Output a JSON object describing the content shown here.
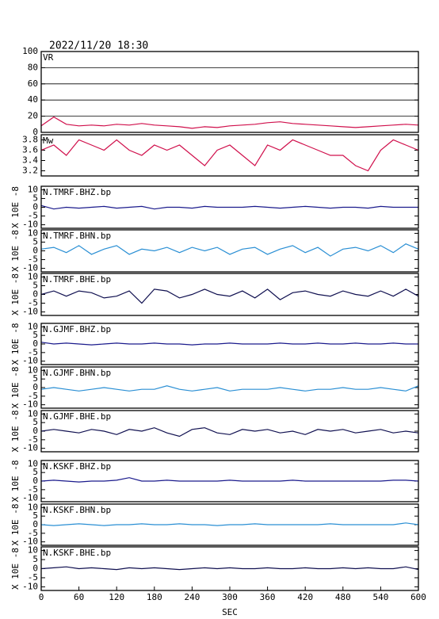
{
  "chart_data": [
    {
      "type": "line",
      "title": "2022/11/20 18:30",
      "label": "VR",
      "color": "#d0104c",
      "grid": true,
      "x": [
        0,
        20,
        40,
        60,
        80,
        100,
        120,
        140,
        160,
        180,
        200,
        220,
        240,
        260,
        280,
        300,
        320,
        340,
        360,
        380,
        400,
        420,
        440,
        460,
        480,
        500,
        520,
        540,
        560,
        580,
        600
      ],
      "values": [
        8,
        19,
        10,
        8,
        9,
        8,
        10,
        9,
        11,
        9,
        8,
        7,
        5,
        7,
        6,
        8,
        9,
        10,
        12,
        13,
        11,
        10,
        9,
        8,
        7,
        6,
        7,
        8,
        9,
        10,
        9
      ],
      "xlim": [
        0,
        600
      ],
      "ylim": [
        0,
        100
      ],
      "yticks": [
        0,
        20,
        40,
        60,
        80,
        100
      ]
    },
    {
      "type": "line",
      "label": "Mw",
      "color": "#d0104c",
      "x": [
        0,
        20,
        40,
        60,
        80,
        100,
        120,
        140,
        160,
        180,
        200,
        220,
        240,
        260,
        280,
        300,
        320,
        340,
        360,
        380,
        400,
        420,
        440,
        460,
        480,
        500,
        520,
        540,
        560,
        580,
        600
      ],
      "values": [
        3.6,
        3.7,
        3.5,
        3.8,
        3.7,
        3.6,
        3.8,
        3.6,
        3.5,
        3.7,
        3.6,
        3.7,
        3.5,
        3.3,
        3.6,
        3.7,
        3.5,
        3.3,
        3.7,
        3.6,
        3.8,
        3.7,
        3.6,
        3.5,
        3.5,
        3.3,
        3.2,
        3.6,
        3.8,
        3.7,
        3.6
      ],
      "xlim": [
        0,
        600
      ],
      "ylim": [
        3.1,
        3.9
      ],
      "yticks": [
        3.2,
        3.4,
        3.6,
        3.8
      ]
    },
    {
      "type": "line",
      "label": "N.TMRF.BHZ.bp",
      "ylabel": "X 10E -8",
      "color": "#1a1a8c",
      "x": [
        0,
        20,
        40,
        60,
        80,
        100,
        120,
        140,
        160,
        180,
        200,
        220,
        240,
        260,
        280,
        300,
        320,
        340,
        360,
        380,
        400,
        420,
        440,
        460,
        480,
        500,
        520,
        540,
        560,
        580,
        600
      ],
      "values": [
        1,
        -1,
        0,
        -0.5,
        0,
        0.5,
        -0.5,
        0,
        0.5,
        -1,
        0,
        0,
        -0.5,
        0.5,
        0,
        0,
        0,
        0.5,
        0,
        -0.5,
        0,
        0.5,
        0,
        -0.5,
        0,
        0,
        -0.5,
        0.5,
        0,
        0,
        0
      ],
      "xlim": [
        0,
        600
      ],
      "ylim": [
        -12,
        12
      ],
      "yticks": [
        -10,
        -5,
        0,
        5,
        10
      ]
    },
    {
      "type": "line",
      "label": "N.TMRF.BHN.bp",
      "ylabel": "X 10E -8",
      "color": "#2a8fd4",
      "x": [
        0,
        20,
        40,
        60,
        80,
        100,
        120,
        140,
        160,
        180,
        200,
        220,
        240,
        260,
        280,
        300,
        320,
        340,
        360,
        380,
        400,
        420,
        440,
        460,
        480,
        500,
        520,
        540,
        560,
        580,
        600
      ],
      "values": [
        1,
        2,
        -1,
        3,
        -2,
        1,
        3,
        -2,
        1,
        0,
        2,
        -1,
        2,
        0,
        2,
        -2,
        1,
        2,
        -2,
        1,
        3,
        -1,
        2,
        -3,
        1,
        2,
        0,
        3,
        -1,
        4,
        1
      ],
      "xlim": [
        0,
        600
      ],
      "ylim": [
        -12,
        12
      ],
      "yticks": [
        -10,
        -5,
        0,
        5,
        10
      ]
    },
    {
      "type": "line",
      "label": "N.TMRF.BHE.bp",
      "ylabel": "X 10E -8",
      "color": "#101050",
      "x": [
        0,
        20,
        40,
        60,
        80,
        100,
        120,
        140,
        160,
        180,
        200,
        220,
        240,
        260,
        280,
        300,
        320,
        340,
        360,
        380,
        400,
        420,
        440,
        460,
        480,
        500,
        520,
        540,
        560,
        580,
        600
      ],
      "values": [
        0,
        2,
        -1,
        2,
        1,
        -2,
        -1,
        2,
        -5,
        3,
        2,
        -2,
        0,
        3,
        0,
        -1,
        2,
        -2,
        3,
        -3,
        1,
        2,
        0,
        -1,
        2,
        0,
        -1,
        2,
        -1,
        3,
        -1
      ],
      "xlim": [
        0,
        600
      ],
      "ylim": [
        -12,
        12
      ],
      "yticks": [
        -10,
        -5,
        0,
        5,
        10
      ]
    },
    {
      "type": "line",
      "label": "N.GJMF.BHZ.bp",
      "ylabel": "X 10E -8",
      "color": "#1a1a8c",
      "x": [
        0,
        20,
        40,
        60,
        80,
        100,
        120,
        140,
        160,
        180,
        200,
        220,
        240,
        260,
        280,
        300,
        320,
        340,
        360,
        380,
        400,
        420,
        440,
        460,
        480,
        500,
        520,
        540,
        560,
        580,
        600
      ],
      "values": [
        1,
        0,
        0.5,
        0,
        -0.5,
        0,
        0.5,
        0,
        0,
        0.5,
        0,
        0,
        -0.5,
        0,
        0,
        0.5,
        0,
        0,
        0,
        0.5,
        0,
        0,
        0.5,
        0,
        0,
        0.5,
        0,
        0,
        0.5,
        0,
        0
      ],
      "xlim": [
        0,
        600
      ],
      "ylim": [
        -12,
        12
      ],
      "yticks": [
        -10,
        -5,
        0,
        5,
        10
      ]
    },
    {
      "type": "line",
      "label": "N.GJMF.BHN.bp",
      "ylabel": "X 10E -8",
      "color": "#2a8fd4",
      "x": [
        0,
        20,
        40,
        60,
        80,
        100,
        120,
        140,
        160,
        180,
        200,
        220,
        240,
        260,
        280,
        300,
        320,
        340,
        360,
        380,
        400,
        420,
        440,
        460,
        480,
        500,
        520,
        540,
        560,
        580,
        600
      ],
      "values": [
        -1,
        0,
        -1,
        -2,
        -1,
        0,
        -1,
        -2,
        -1,
        -1,
        1,
        -1,
        -2,
        -1,
        0,
        -2,
        -1,
        -1,
        -1,
        0,
        -1,
        -2,
        -1,
        -1,
        0,
        -1,
        -1,
        0,
        -1,
        -2,
        1
      ],
      "xlim": [
        0,
        600
      ],
      "ylim": [
        -12,
        12
      ],
      "yticks": [
        -10,
        -5,
        0,
        5,
        10
      ]
    },
    {
      "type": "line",
      "label": "N.GJMF.BHE.bp",
      "ylabel": "X 10E -8",
      "color": "#101050",
      "x": [
        0,
        20,
        40,
        60,
        80,
        100,
        120,
        140,
        160,
        180,
        200,
        220,
        240,
        260,
        280,
        300,
        320,
        340,
        360,
        380,
        400,
        420,
        440,
        460,
        480,
        500,
        520,
        540,
        560,
        580,
        600
      ],
      "values": [
        0,
        1,
        0,
        -1,
        1,
        0,
        -2,
        1,
        0,
        2,
        -1,
        -3,
        1,
        2,
        -1,
        -2,
        1,
        0,
        1,
        -1,
        0,
        -2,
        1,
        0,
        1,
        -1,
        0,
        1,
        -1,
        0,
        -1
      ],
      "xlim": [
        0,
        600
      ],
      "ylim": [
        -12,
        12
      ],
      "yticks": [
        -10,
        -5,
        0,
        5,
        10
      ]
    },
    {
      "type": "line",
      "label": "N.KSKF.BHZ.bp",
      "ylabel": "X 10E -8",
      "color": "#1a1a8c",
      "x": [
        0,
        20,
        40,
        60,
        80,
        100,
        120,
        140,
        160,
        180,
        200,
        220,
        240,
        260,
        280,
        300,
        320,
        340,
        360,
        380,
        400,
        420,
        440,
        460,
        480,
        500,
        520,
        540,
        560,
        580,
        600
      ],
      "values": [
        0,
        0.5,
        0,
        -0.5,
        0,
        0,
        0.5,
        2,
        0,
        0,
        0.5,
        0,
        0,
        0,
        0,
        0.5,
        0,
        0,
        0,
        0,
        0.5,
        0,
        0,
        0,
        0,
        0,
        0,
        0,
        0.5,
        0.5,
        0
      ],
      "xlim": [
        0,
        600
      ],
      "ylim": [
        -12,
        12
      ],
      "yticks": [
        -10,
        -5,
        0,
        5,
        10
      ]
    },
    {
      "type": "line",
      "label": "N.KSKF.BHN.bp",
      "ylabel": "X 10E -8",
      "color": "#2a8fd4",
      "x": [
        0,
        20,
        40,
        60,
        80,
        100,
        120,
        140,
        160,
        180,
        200,
        220,
        240,
        260,
        280,
        300,
        320,
        340,
        360,
        380,
        400,
        420,
        440,
        460,
        480,
        500,
        520,
        540,
        560,
        580,
        600
      ],
      "values": [
        0,
        -0.5,
        0,
        0.5,
        0,
        -0.5,
        0,
        0,
        0.5,
        0,
        0,
        0.5,
        0,
        0,
        -0.5,
        0,
        0,
        0.5,
        0,
        0,
        0,
        0,
        0,
        0.5,
        0,
        0,
        0,
        0,
        0,
        1,
        0
      ],
      "xlim": [
        0,
        600
      ],
      "ylim": [
        -12,
        12
      ],
      "yticks": [
        -10,
        -5,
        0,
        5,
        10
      ]
    },
    {
      "type": "line",
      "label": "N.KSKF.BHE.bp",
      "ylabel": "X 10E -8",
      "color": "#101050",
      "xlabel": "SEC",
      "x": [
        0,
        20,
        40,
        60,
        80,
        100,
        120,
        140,
        160,
        180,
        200,
        220,
        240,
        260,
        280,
        300,
        320,
        340,
        360,
        380,
        400,
        420,
        440,
        460,
        480,
        500,
        520,
        540,
        560,
        580,
        600
      ],
      "values": [
        0,
        0.5,
        1,
        0,
        0.5,
        0,
        -0.5,
        0.5,
        0,
        0.5,
        0,
        -0.5,
        0,
        0.5,
        0,
        0.5,
        0,
        0,
        0.5,
        0,
        0,
        0.5,
        0,
        0,
        0.5,
        0,
        0.5,
        0,
        0,
        1,
        -0.5
      ],
      "xlim": [
        0,
        600
      ],
      "ylim": [
        -12,
        12
      ],
      "yticks": [
        -10,
        -5,
        0,
        5,
        10
      ],
      "xticks": [
        0,
        60,
        120,
        180,
        240,
        300,
        360,
        420,
        480,
        540,
        600
      ]
    }
  ]
}
